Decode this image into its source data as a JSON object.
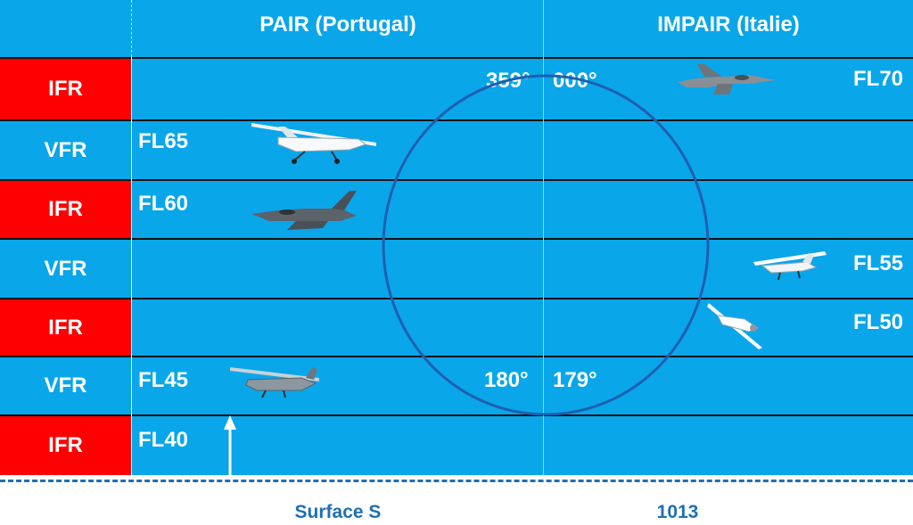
{
  "header": {
    "left_title": "PAIR (Portugal)",
    "right_title": "IMPAIR (Italie)"
  },
  "rows": [
    {
      "rule": "IFR",
      "rule_color": "#ff0000",
      "left_label": "",
      "right_label": "FL70"
    },
    {
      "rule": "VFR",
      "rule_color": "#09a6ea",
      "left_label": "FL65",
      "right_label": ""
    },
    {
      "rule": "IFR",
      "rule_color": "#ff0000",
      "left_label": "FL60",
      "right_label": ""
    },
    {
      "rule": "VFR",
      "rule_color": "#09a6ea",
      "left_label": "",
      "right_label": "FL55"
    },
    {
      "rule": "IFR",
      "rule_color": "#ff0000",
      "left_label": "",
      "right_label": "FL50"
    },
    {
      "rule": "VFR",
      "rule_color": "#09a6ea",
      "left_label": "FL45",
      "right_label": ""
    },
    {
      "rule": "IFR",
      "rule_color": "#ff0000",
      "left_label": "FL40",
      "right_label": ""
    }
  ],
  "headings": {
    "top_left": "359°",
    "top_right": "000°",
    "bottom_left": "180°",
    "bottom_right": "179°"
  },
  "footer": {
    "left": "Surface S",
    "right": "1013"
  },
  "colors": {
    "background": "#09a6ea",
    "ifr": "#ff0000",
    "circle": "#1f5fae",
    "footer_text": "#1f6fb3"
  },
  "icons": [
    "jet-fighter-icon",
    "ultralight-plane-icon",
    "high-wing-plane-icon",
    "low-wing-plane-icon"
  ]
}
